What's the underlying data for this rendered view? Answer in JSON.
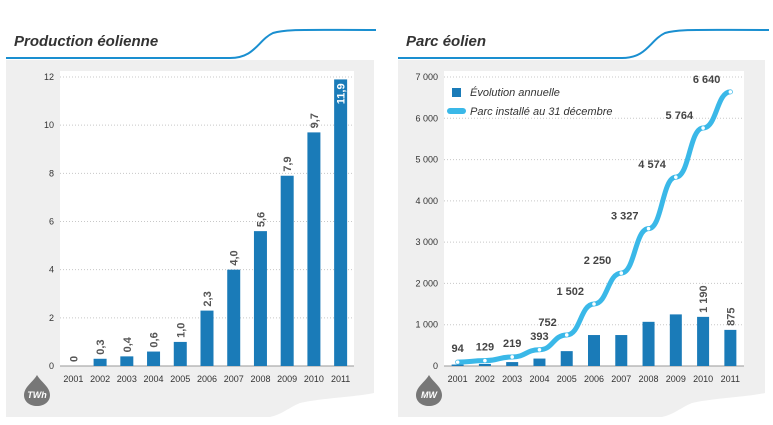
{
  "colors": {
    "bar": "#1a7bb8",
    "line": "#3ab8e8",
    "header_rule": "#1a8fd0",
    "panel_bg": "#efefef",
    "plot_bg": "#ffffff",
    "gridline": "#c8c8c8",
    "text": "#333333",
    "badge": "#777777"
  },
  "panels": [
    {
      "title": "Production éolienne",
      "unit_badge": "TWh",
      "unit_icon": "drop-icon"
    },
    {
      "title": "Parc éolien",
      "unit_badge": "MW",
      "unit_icon": "drop-icon"
    }
  ],
  "chart_data": [
    {
      "type": "bar",
      "title": "Production éolienne",
      "ylabel": "TWh",
      "categories": [
        "2001",
        "2002",
        "2003",
        "2004",
        "2005",
        "2006",
        "2007",
        "2008",
        "2009",
        "2010",
        "2011"
      ],
      "values": [
        0,
        0.3,
        0.4,
        0.6,
        1.0,
        2.3,
        4.0,
        5.6,
        7.9,
        9.7,
        11.9
      ],
      "data_labels": [
        "0",
        "0,3",
        "0,4",
        "0,6",
        "1,0",
        "2,3",
        "4,0",
        "5,6",
        "7,9",
        "9,7",
        "11,9"
      ],
      "ylim": [
        0,
        12
      ],
      "yticks": [
        0,
        2,
        4,
        6,
        8,
        10,
        12
      ],
      "ytick_labels": [
        "0",
        "2",
        "4",
        "6",
        "8",
        "10",
        "12"
      ],
      "grid": true
    },
    {
      "type": "bar+line",
      "title": "Parc éolien",
      "ylabel": "MW",
      "categories": [
        "2001",
        "2002",
        "2003",
        "2004",
        "2005",
        "2006",
        "2007",
        "2008",
        "2009",
        "2010",
        "2011"
      ],
      "ylim": [
        0,
        7000
      ],
      "yticks": [
        0,
        1000,
        2000,
        3000,
        4000,
        5000,
        6000,
        7000
      ],
      "ytick_labels": [
        "0",
        "1 000",
        "2 000",
        "3 000",
        "4 000",
        "5 000",
        "6 000",
        "7 000"
      ],
      "legend": [
        "Évolution annuelle",
        "Parc installé au 31 décembre"
      ],
      "legend_position": "top-left",
      "grid": true,
      "series": [
        {
          "name": "Évolution annuelle",
          "type": "bar",
          "values": [
            35,
            50,
            95,
            180,
            360,
            750,
            750,
            1070,
            1250,
            1190,
            875
          ],
          "data_labels": [
            "",
            "",
            "",
            "",
            "",
            "",
            "",
            "",
            "",
            "1 190",
            "875"
          ]
        },
        {
          "name": "Parc installé au 31 décembre",
          "type": "line",
          "values": [
            94,
            129,
            219,
            393,
            752,
            1502,
            2250,
            3327,
            4574,
            5764,
            6640
          ],
          "data_labels": [
            "94",
            "129",
            "219",
            "393",
            "752",
            "1 502",
            "2 250",
            "3 327",
            "4 574",
            "5 764",
            "6 640"
          ]
        }
      ]
    }
  ]
}
